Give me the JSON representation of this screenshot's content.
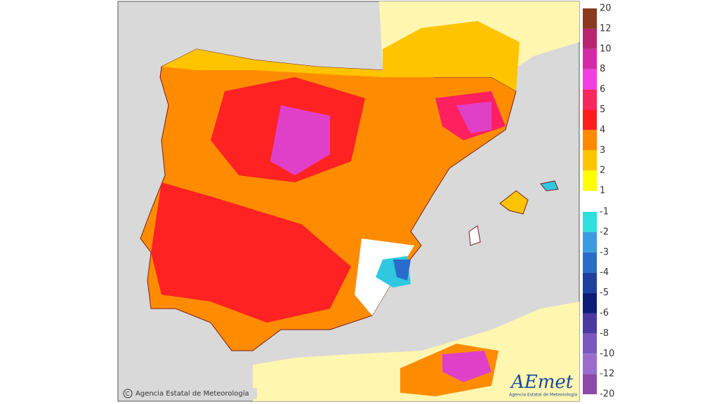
{
  "credit": "Agencia Estatal de Meteorología",
  "logo": {
    "name": "AEmet",
    "subtitle": "Agencia Estatal de Meteorología"
  },
  "legend": {
    "positive": {
      "labels": [
        20,
        12,
        10,
        8,
        6,
        5,
        4,
        3,
        2,
        1
      ],
      "colors": [
        "#8a3a1e",
        "#b8246e",
        "#d42aa8",
        "#f040e0",
        "#f8285c",
        "#ff1e1e",
        "#ff8a00",
        "#ffc400",
        "#ffff00"
      ]
    },
    "negative": {
      "labels": [
        -1,
        -2,
        -3,
        -4,
        -5,
        -6,
        -8,
        -10,
        -12,
        -20
      ],
      "colors": [
        "#30dede",
        "#3a9ce0",
        "#2a6ccc",
        "#1e40a0",
        "#0e1e78",
        "#4a3aa0",
        "#7a58c0",
        "#9a6ccc",
        "#8a4aa8"
      ]
    }
  }
}
